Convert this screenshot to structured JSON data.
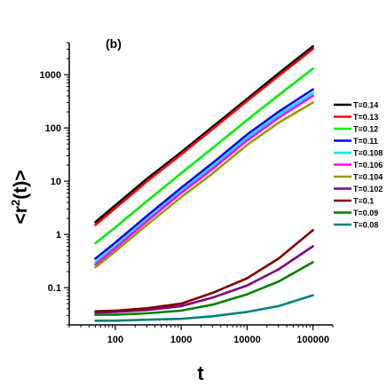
{
  "chart_data": {
    "type": "line",
    "panel_label": "(b)",
    "xlabel": "t",
    "ylabel_pre": "<r",
    "ylabel_sup": "2",
    "ylabel_post": "(t)>",
    "x_scale": "log",
    "y_scale": "log",
    "xlim": [
      20,
      200000
    ],
    "ylim": [
      0.02,
      4000
    ],
    "x_ticks": [
      100,
      1000,
      10000,
      100000
    ],
    "x_tick_labels": [
      "100",
      "1000",
      "10000",
      "100000"
    ],
    "y_ticks": [
      0.1,
      1,
      10,
      100,
      1000
    ],
    "y_tick_labels": [
      "0.1",
      "1",
      "10",
      "100",
      "1000"
    ],
    "grid": false,
    "legend_position": "right",
    "x": [
      50,
      100,
      300,
      1000,
      3000,
      10000,
      30000,
      100000
    ],
    "series": [
      {
        "name": "T=0.14",
        "color": "#000000",
        "values": [
          1.7,
          3.5,
          11,
          35,
          105,
          350,
          1050,
          3400
        ]
      },
      {
        "name": "T=0.13",
        "color": "#ff0000",
        "values": [
          1.5,
          3.1,
          9.8,
          32,
          95,
          320,
          950,
          3050
        ]
      },
      {
        "name": "T=0.12",
        "color": "#00ee00",
        "values": [
          0.68,
          1.35,
          4.2,
          14,
          42,
          140,
          410,
          1300
        ]
      },
      {
        "name": "T=0.11",
        "color": "#0000ff",
        "values": [
          0.35,
          0.7,
          2.2,
          7.5,
          22,
          75,
          200,
          530
        ]
      },
      {
        "name": "T=0.108",
        "color": "#00e5ee",
        "values": [
          0.3,
          0.6,
          1.9,
          6.5,
          19,
          65,
          175,
          450
        ]
      },
      {
        "name": "T=0.106",
        "color": "#ff00ff",
        "values": [
          0.27,
          0.55,
          1.75,
          6,
          17,
          58,
          155,
          400
        ]
      },
      {
        "name": "T=0.104",
        "color": "#999900",
        "values": [
          0.24,
          0.48,
          1.5,
          5,
          14,
          48,
          125,
          300
        ]
      },
      {
        "name": "T=0.102",
        "color": "#800080",
        "values": [
          0.034,
          0.035,
          0.038,
          0.045,
          0.065,
          0.11,
          0.22,
          0.6
        ]
      },
      {
        "name": "T=0.1",
        "color": "#800000",
        "values": [
          0.036,
          0.037,
          0.041,
          0.05,
          0.08,
          0.15,
          0.35,
          1.2
        ]
      },
      {
        "name": "T=0.09",
        "color": "#008000",
        "values": [
          0.031,
          0.031,
          0.033,
          0.037,
          0.048,
          0.075,
          0.13,
          0.3
        ]
      },
      {
        "name": "T=0.08",
        "color": "#008080",
        "values": [
          0.024,
          0.024,
          0.025,
          0.026,
          0.029,
          0.035,
          0.045,
          0.072
        ]
      }
    ]
  }
}
